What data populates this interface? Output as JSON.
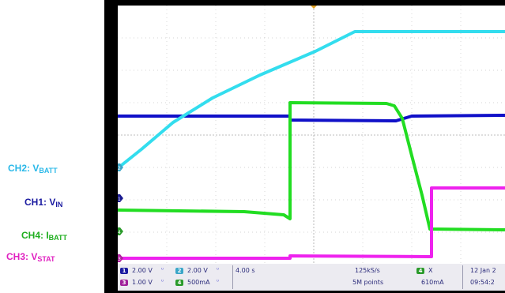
{
  "legend": [
    {
      "name": "CH2: V",
      "sub": "BATT",
      "color": "#2ab8e8"
    },
    {
      "name": "CH1: V",
      "sub": "IN",
      "color": "#1a1aa0"
    },
    {
      "name": "CH4: I",
      "sub": "BATT",
      "color": "#1fae1f"
    },
    {
      "name": "CH3: V",
      "sub": "STAT",
      "color": "#e020c0"
    }
  ],
  "channel_colors": {
    "ch1": "#1010c8",
    "ch2": "#33ddee",
    "ch3": "#ee22ee",
    "ch4": "#22dd22"
  },
  "status": {
    "ch1_num": "1",
    "ch1_scale": "2.00 V",
    "ch2_num": "2",
    "ch2_scale": "2.00 V",
    "ch3_num": "3",
    "ch3_scale": "1.00 V",
    "ch4_num": "4",
    "ch4_scale": "500mA",
    "timebase": "4.00 s",
    "sample_rate": "125kS/s",
    "record_length": "5M points",
    "cursor_channel": "4",
    "cursor_label": "X",
    "cursor_value": "610mA",
    "date": "12 Jan 2",
    "time": "09:54:2"
  }
}
